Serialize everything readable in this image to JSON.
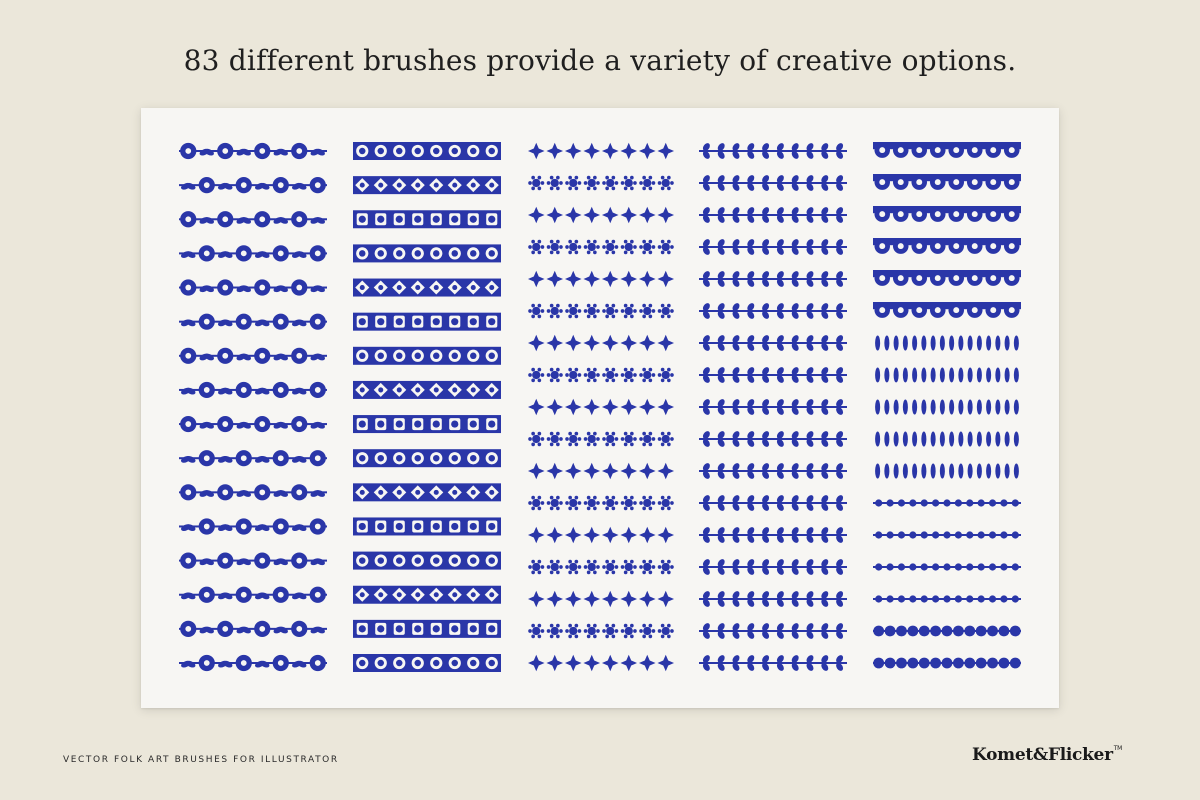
{
  "headline": "83 different brushes provide a variety of creative options.",
  "footer": {
    "tagline": "VECTOR FOLK ART BRUSHES FOR ILLUSTRATOR",
    "brand": "Komet&Flicker",
    "trademark": "TM"
  },
  "colors": {
    "background": "#ebe7da",
    "sheet": "#f7f6f3",
    "brush_ink": "#2a36a8"
  },
  "brush_sheet": {
    "total_brushes": 83,
    "columns": [
      {
        "label": "floral",
        "count": 16
      },
      {
        "label": "tiles-medallions",
        "count": 16
      },
      {
        "label": "geometric-stars",
        "count": 17
      },
      {
        "label": "leaves-vines",
        "count": 17
      },
      {
        "label": "scallops-dots",
        "count": 17
      }
    ]
  }
}
